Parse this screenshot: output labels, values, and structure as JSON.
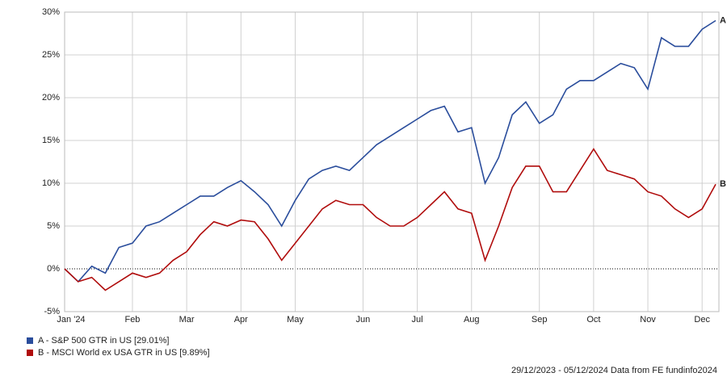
{
  "chart_data": {
    "type": "line",
    "categories": [
      "Jan '24",
      null,
      null,
      null,
      null,
      "Feb",
      null,
      null,
      null,
      "Mar",
      null,
      null,
      null,
      "Apr",
      null,
      null,
      null,
      "May",
      null,
      null,
      null,
      null,
      "Jun",
      null,
      null,
      null,
      "Jul",
      null,
      null,
      null,
      "Aug",
      null,
      null,
      null,
      null,
      "Sep",
      null,
      null,
      null,
      "Oct",
      null,
      null,
      null,
      "Nov",
      null,
      null,
      null,
      "Dec",
      null
    ],
    "series": [
      {
        "name": "A - S&P 500 GTR in US [29.01%]",
        "end_label": "A",
        "color": "#2a4d9c",
        "values": [
          0,
          -1.5,
          0.3,
          -0.5,
          2.5,
          3,
          5,
          5.5,
          6.5,
          7.5,
          8.5,
          8.5,
          9.5,
          10.3,
          9,
          7.5,
          5,
          8,
          10.5,
          11.5,
          12,
          11.5,
          13,
          14.5,
          15.5,
          16.5,
          17.5,
          18.5,
          19,
          16,
          16.5,
          10,
          13,
          18,
          19.5,
          17,
          18,
          21,
          22,
          22,
          23,
          24,
          23.5,
          21,
          27,
          26,
          26,
          28,
          29.01
        ]
      },
      {
        "name": "B - MSCI World ex USA GTR in US [9.89%]",
        "end_label": "B",
        "color": "#b00c0c",
        "values": [
          0,
          -1.5,
          -1,
          -2.5,
          -1.5,
          -0.5,
          -1,
          -0.5,
          1,
          2,
          4,
          5.5,
          5,
          5.7,
          5.5,
          3.5,
          1,
          3,
          5,
          7,
          8,
          7.5,
          7.5,
          6,
          5,
          5,
          6,
          7.5,
          9,
          7,
          6.5,
          1,
          5,
          9.5,
          12,
          12,
          9,
          9,
          11.5,
          14,
          11.5,
          11,
          10.5,
          9,
          8.5,
          7,
          6,
          7,
          9.89
        ]
      }
    ],
    "ylim": [
      -5,
      30
    ],
    "yticks": [
      {
        "value": -5,
        "label": "-5%"
      },
      {
        "value": 0,
        "label": "0%"
      },
      {
        "value": 5,
        "label": "5%"
      },
      {
        "value": 10,
        "label": "10%"
      },
      {
        "value": 15,
        "label": "15%"
      },
      {
        "value": 20,
        "label": "20%"
      },
      {
        "value": 25,
        "label": "25%"
      },
      {
        "value": 30,
        "label": "30%"
      }
    ],
    "grid": true,
    "source": "29/12/2023 - 05/12/2024 Data from FE fundinfo2024"
  }
}
